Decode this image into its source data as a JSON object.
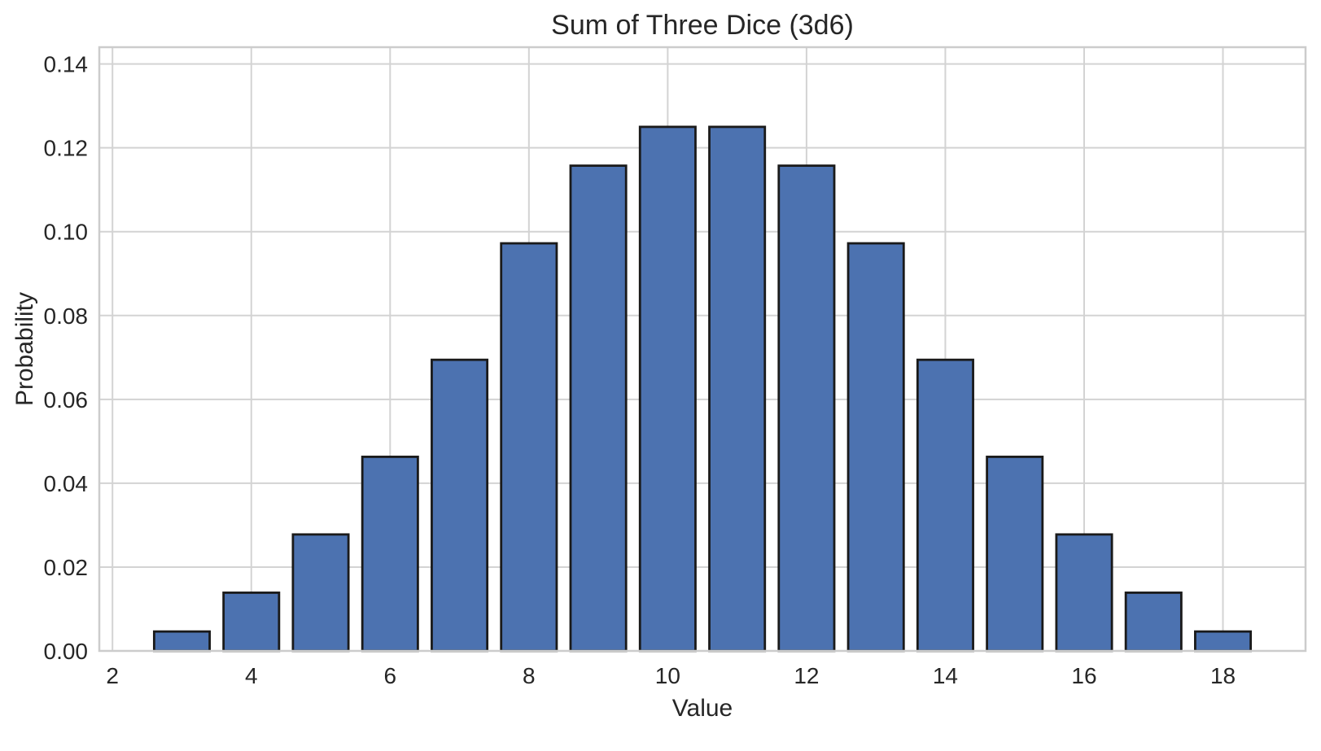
{
  "chart_data": {
    "type": "bar",
    "title": "Sum of Three Dice (3d6)",
    "xlabel": "Value",
    "ylabel": "Probability",
    "categories": [
      3,
      4,
      5,
      6,
      7,
      8,
      9,
      10,
      11,
      12,
      13,
      14,
      15,
      16,
      17,
      18
    ],
    "values": [
      0.00463,
      0.01389,
      0.02778,
      0.0463,
      0.06944,
      0.09722,
      0.11574,
      0.125,
      0.125,
      0.11574,
      0.09722,
      0.06944,
      0.0463,
      0.02778,
      0.01389,
      0.00463
    ],
    "bar_width": 0.8,
    "xlim": [
      1.81,
      19.19
    ],
    "ylim": [
      0,
      0.144
    ],
    "xticks": [
      2,
      4,
      6,
      8,
      10,
      12,
      14,
      16,
      18
    ],
    "yticks": [
      0.0,
      0.02,
      0.04,
      0.06,
      0.08,
      0.1,
      0.12,
      0.14
    ],
    "ytick_decimals": 2,
    "grid": true,
    "legend": null,
    "colors": {
      "bar_fill": "#4C72B0",
      "bar_edge": "#1A1A1A",
      "grid": "#D3D3D3",
      "spine": "#CCCCCC",
      "text": "#262626",
      "background": "#FFFFFF"
    }
  }
}
